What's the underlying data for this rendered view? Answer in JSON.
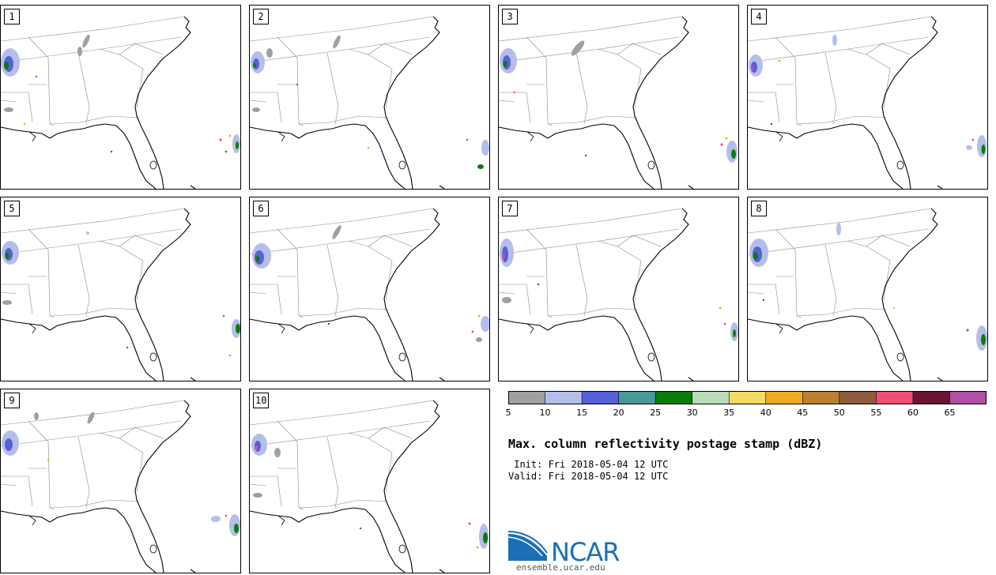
{
  "panels": [
    {
      "label": "1"
    },
    {
      "label": "2"
    },
    {
      "label": "3"
    },
    {
      "label": "4"
    },
    {
      "label": "5"
    },
    {
      "label": "6"
    },
    {
      "label": "7"
    },
    {
      "label": "8"
    },
    {
      "label": "9"
    },
    {
      "label": "10"
    }
  ],
  "colorbar": {
    "ticks": [
      "5",
      "10",
      "15",
      "20",
      "25",
      "30",
      "35",
      "40",
      "45",
      "50",
      "55",
      "60",
      "65"
    ],
    "colors": [
      "#a0a0a0",
      "#b4bee8",
      "#5660d8",
      "#4a9898",
      "#0a7c0a",
      "#b8dcb8",
      "#f0dc64",
      "#eeaa22",
      "#b88030",
      "#8c5a3c",
      "#f05078",
      "#6a1436",
      "#b050a8"
    ]
  },
  "title": "Max. column reflectivity postage stamp (dBZ)",
  "init_line": " Init: Fri 2018-05-04 12 UTC",
  "valid_line": "Valid: Fri 2018-05-04 12 UTC",
  "logo": {
    "text": "NCAR",
    "url": "ensemble.ucar.edu",
    "color": "#1b6fb5"
  }
}
